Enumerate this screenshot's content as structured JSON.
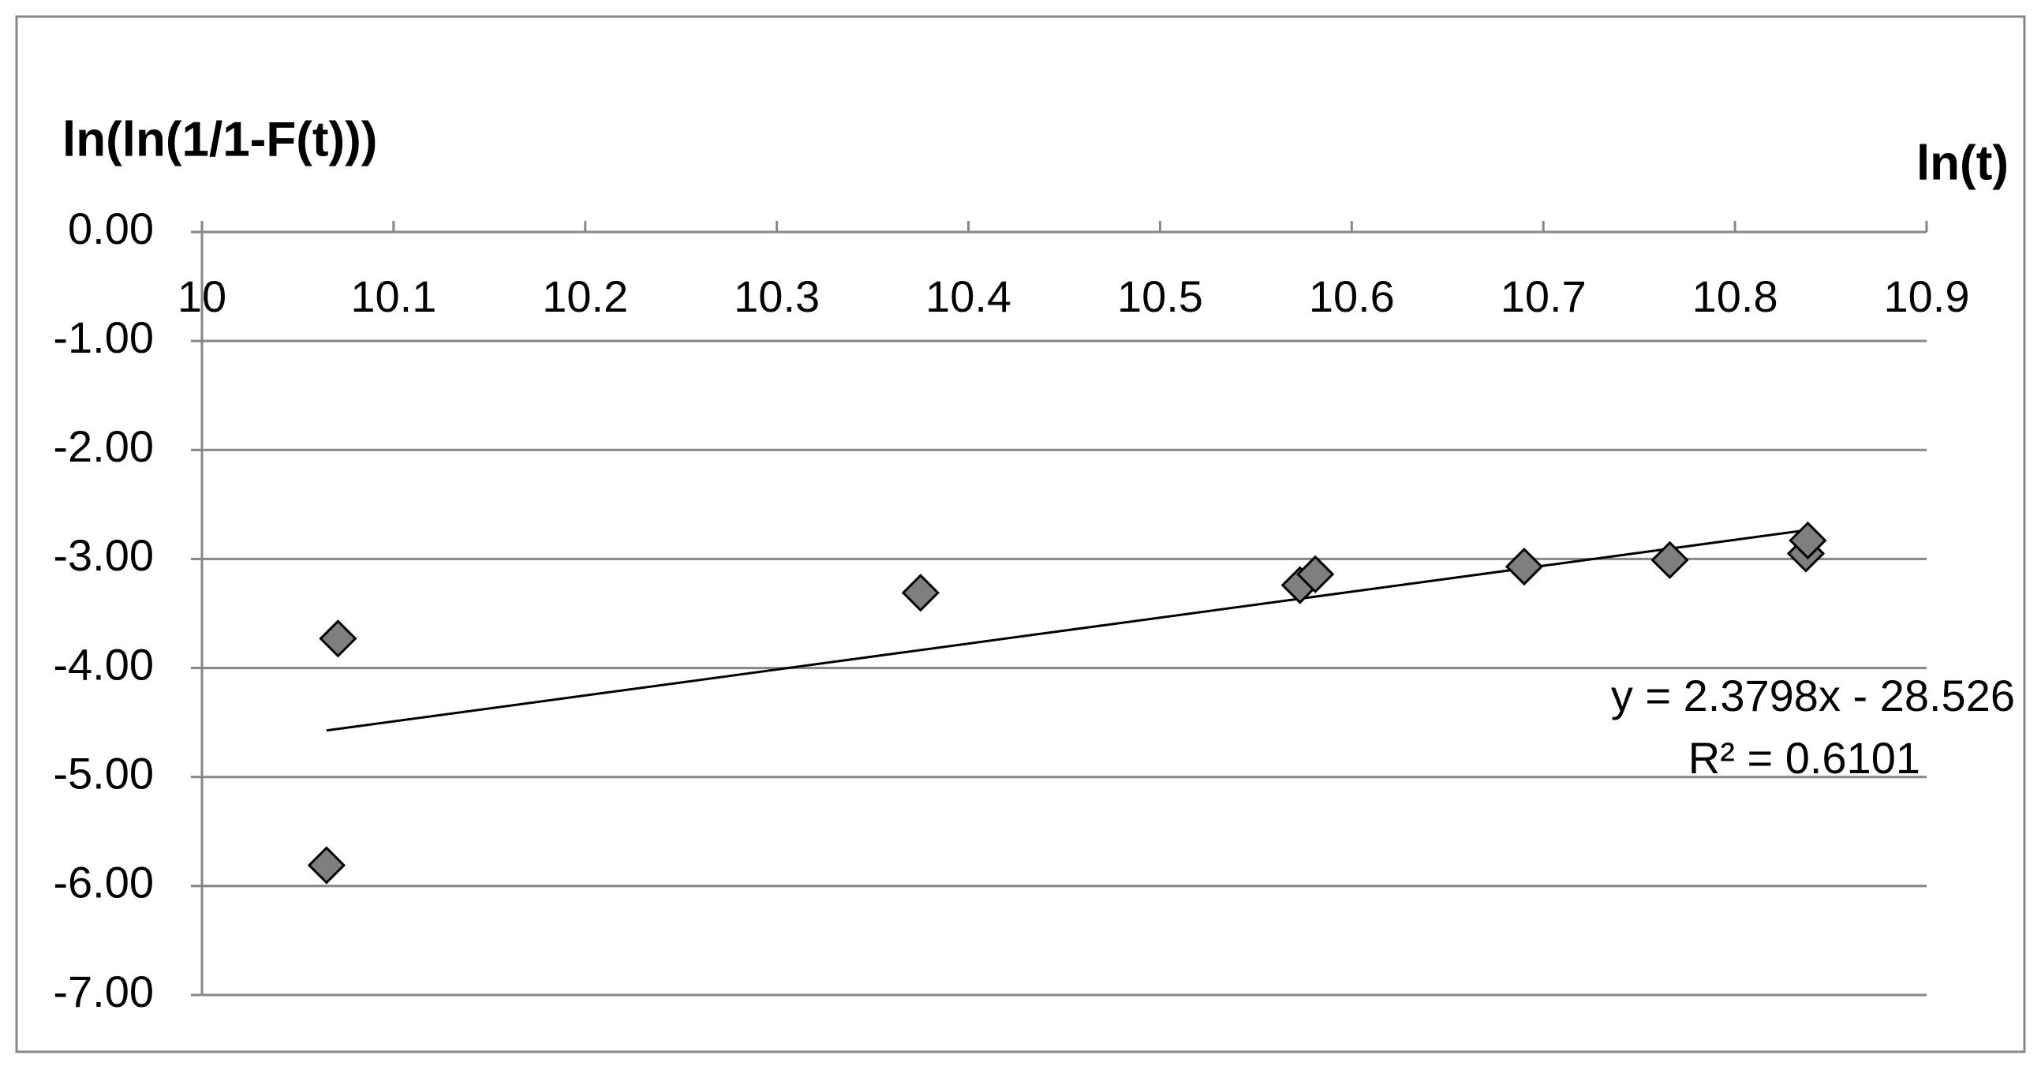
{
  "chart_data": {
    "type": "scatter",
    "y_axis_title": "ln(ln(1/1-F(t)))",
    "x_axis_title": "ln(t)",
    "x": [
      10.065,
      10.071,
      10.375,
      10.573,
      10.581,
      10.69,
      10.766,
      10.837,
      10.838
    ],
    "series": [
      {
        "color": "#7f7f7f",
        "values": [
          -5.81,
          -3.73,
          -3.31,
          -3.24,
          -3.14,
          -3.07,
          -3.01,
          -2.95,
          -2.83
        ]
      }
    ],
    "xlim": [
      10,
      10.9
    ],
    "xticks": [
      10,
      10.1,
      10.2,
      10.3,
      10.4,
      10.5,
      10.6,
      10.7,
      10.8,
      10.9
    ],
    "ylim": [
      -7,
      0
    ],
    "yticks": [
      {
        "value": 0,
        "label": "0.00"
      },
      {
        "value": -1,
        "label": "-1.00"
      },
      {
        "value": -2,
        "label": "-2.00"
      },
      {
        "value": -3,
        "label": "-3.00"
      },
      {
        "value": -4,
        "label": "-4.00"
      },
      {
        "value": -5,
        "label": "-5.00"
      },
      {
        "value": -6,
        "label": "-6.00"
      },
      {
        "value": -7,
        "label": "-7.00"
      }
    ],
    "grid": true,
    "trendline": {
      "slope": 2.3798,
      "intercept": -28.526,
      "equation": "y = 2.3798x - 28.526",
      "r_squared": "R² = 0.6101"
    }
  }
}
